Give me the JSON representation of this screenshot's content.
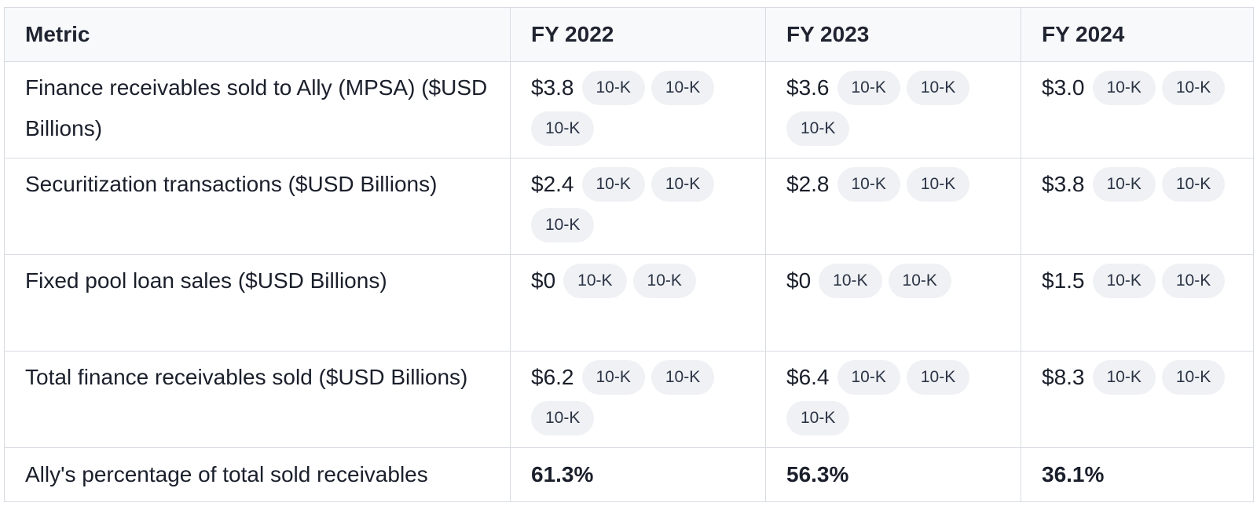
{
  "table": {
    "headers": [
      "Metric",
      "FY 2022",
      "FY 2023",
      "FY 2024"
    ],
    "rows": [
      {
        "metric": "Finance receivables sold to Ally (MPSA) ($USD Billions)",
        "cells": [
          {
            "value": "$3.8",
            "sources": [
              "10-K",
              "10-K",
              "10-K"
            ]
          },
          {
            "value": "$3.6",
            "sources": [
              "10-K",
              "10-K",
              "10-K"
            ]
          },
          {
            "value": "$3.0",
            "sources": [
              "10-K",
              "10-K"
            ]
          }
        ]
      },
      {
        "metric": "Securitization transactions ($USD Billions)",
        "cells": [
          {
            "value": "$2.4",
            "sources": [
              "10-K",
              "10-K",
              "10-K"
            ]
          },
          {
            "value": "$2.8",
            "sources": [
              "10-K",
              "10-K"
            ]
          },
          {
            "value": "$3.8",
            "sources": [
              "10-K",
              "10-K"
            ]
          }
        ]
      },
      {
        "metric": "Fixed pool loan sales ($USD Billions)",
        "cells": [
          {
            "value": "$0",
            "sources": [
              "10-K",
              "10-K"
            ]
          },
          {
            "value": "$0",
            "sources": [
              "10-K",
              "10-K"
            ]
          },
          {
            "value": "$1.5",
            "sources": [
              "10-K",
              "10-K"
            ]
          }
        ]
      },
      {
        "metric": "Total finance receivables sold ($USD Billions)",
        "cells": [
          {
            "value": "$6.2",
            "sources": [
              "10-K",
              "10-K",
              "10-K"
            ]
          },
          {
            "value": "$6.4",
            "sources": [
              "10-K",
              "10-K",
              "10-K"
            ]
          },
          {
            "value": "$8.3",
            "sources": [
              "10-K",
              "10-K"
            ]
          }
        ]
      },
      {
        "metric": "Ally's percentage of total sold receivables",
        "bold": true,
        "cells": [
          {
            "value": "61.3%",
            "sources": []
          },
          {
            "value": "56.3%",
            "sources": []
          },
          {
            "value": "36.1%",
            "sources": []
          }
        ]
      }
    ]
  },
  "colors": {
    "border": "#d8dce2",
    "header_bg": "#f8f9fb",
    "pill_bg": "#eff1f4",
    "text": "#1a1f2b"
  }
}
